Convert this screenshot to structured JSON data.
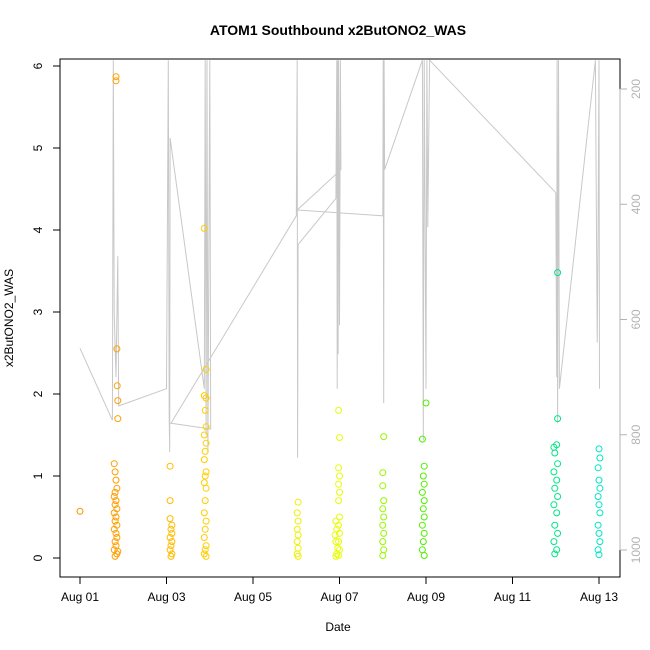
{
  "chart_data": {
    "type": "scatter",
    "title": "ATOM1 Southbound x2ButONO2_WAS",
    "xlabel": "Date",
    "ylabel": "x2ButONO2_WAS",
    "xlim": [
      "2016-08-01",
      "2016-08-13"
    ],
    "ylim": [
      0,
      6
    ],
    "y2lim": [
      1000,
      150
    ],
    "x_tick_labels": [
      "Aug 01",
      "Aug 03",
      "Aug 05",
      "Aug 07",
      "Aug 09",
      "Aug 11",
      "Aug 13"
    ],
    "y_ticks": [
      0,
      1,
      2,
      3,
      4,
      5,
      6
    ],
    "y2_ticks": [
      200,
      400,
      600,
      800,
      1000
    ],
    "grid": false,
    "colors": {
      "line": "#c8c8c8",
      "y2_axis": "#b3b3b3",
      "point_gradient": [
        "#ff8c00",
        "#ffd000",
        "#e6ff00",
        "#00e600",
        "#00e6c8"
      ]
    },
    "series": [
      {
        "values": [
          [
            "2016-08-01T00:00",
            0.57
          ],
          [
            "2016-08-01T20:00",
            5.82
          ],
          [
            "2016-08-01T20:00",
            5.87
          ],
          [
            "2016-08-01T20:30",
            2.55
          ],
          [
            "2016-08-01T20:40",
            2.1
          ],
          [
            "2016-08-01T21:00",
            1.92
          ],
          [
            "2016-08-01T21:00",
            1.7
          ],
          [
            "2016-08-01T19:00",
            1.15
          ],
          [
            "2016-08-01T19:30",
            1.05
          ],
          [
            "2016-08-01T20:00",
            0.95
          ],
          [
            "2016-08-01T20:30",
            0.85
          ],
          [
            "2016-08-01T19:30",
            0.8
          ],
          [
            "2016-08-01T19:00",
            0.75
          ],
          [
            "2016-08-01T20:00",
            0.7
          ],
          [
            "2016-08-01T19:30",
            0.65
          ],
          [
            "2016-08-01T20:30",
            0.6
          ],
          [
            "2016-08-01T19:00",
            0.55
          ],
          [
            "2016-08-01T20:00",
            0.5
          ],
          [
            "2016-08-01T19:30",
            0.45
          ],
          [
            "2016-08-01T20:30",
            0.4
          ],
          [
            "2016-08-01T19:00",
            0.35
          ],
          [
            "2016-08-01T20:00",
            0.3
          ],
          [
            "2016-08-01T20:30",
            0.25
          ],
          [
            "2016-08-01T19:30",
            0.2
          ],
          [
            "2016-08-01T20:00",
            0.15
          ],
          [
            "2016-08-01T19:00",
            0.1
          ],
          [
            "2016-08-01T20:30",
            0.05
          ],
          [
            "2016-08-01T19:30",
            0.02
          ],
          [
            "2016-08-01T21:00",
            0.08
          ],
          [
            "2016-08-03T02:00",
            1.12
          ],
          [
            "2016-08-03T02:00",
            0.7
          ],
          [
            "2016-08-03T02:00",
            0.48
          ],
          [
            "2016-08-03T03:00",
            0.4
          ],
          [
            "2016-08-03T02:30",
            0.35
          ],
          [
            "2016-08-03T03:00",
            0.3
          ],
          [
            "2016-08-03T02:00",
            0.25
          ],
          [
            "2016-08-03T03:00",
            0.2
          ],
          [
            "2016-08-03T02:30",
            0.15
          ],
          [
            "2016-08-03T02:00",
            0.1
          ],
          [
            "2016-08-03T03:00",
            0.05
          ],
          [
            "2016-08-03T02:30",
            0.02
          ],
          [
            "2016-08-03T21:00",
            4.02
          ],
          [
            "2016-08-03T22:00",
            2.3
          ],
          [
            "2016-08-03T21:00",
            1.98
          ],
          [
            "2016-08-03T22:00",
            1.95
          ],
          [
            "2016-08-03T21:30",
            1.8
          ],
          [
            "2016-08-03T22:00",
            1.6
          ],
          [
            "2016-08-03T21:00",
            1.5
          ],
          [
            "2016-08-03T22:00",
            1.4
          ],
          [
            "2016-08-03T21:30",
            1.3
          ],
          [
            "2016-08-03T21:00",
            1.2
          ],
          [
            "2016-08-03T22:00",
            1.05
          ],
          [
            "2016-08-03T21:30",
            1.0
          ],
          [
            "2016-08-03T21:00",
            0.92
          ],
          [
            "2016-08-03T22:00",
            0.85
          ],
          [
            "2016-08-03T21:30",
            0.7
          ],
          [
            "2016-08-03T21:00",
            0.55
          ],
          [
            "2016-08-03T22:00",
            0.45
          ],
          [
            "2016-08-03T21:30",
            0.35
          ],
          [
            "2016-08-03T21:00",
            0.25
          ],
          [
            "2016-08-03T22:00",
            0.15
          ],
          [
            "2016-08-03T21:30",
            0.1
          ],
          [
            "2016-08-03T21:00",
            0.05
          ],
          [
            "2016-08-03T22:00",
            0.02
          ],
          [
            "2016-08-06T01:00",
            0.68
          ],
          [
            "2016-08-06T00:30",
            0.55
          ],
          [
            "2016-08-06T01:00",
            0.45
          ],
          [
            "2016-08-06T00:30",
            0.35
          ],
          [
            "2016-08-06T01:00",
            0.28
          ],
          [
            "2016-08-06T00:30",
            0.2
          ],
          [
            "2016-08-06T01:00",
            0.12
          ],
          [
            "2016-08-06T00:30",
            0.05
          ],
          [
            "2016-08-06T01:00",
            0.02
          ],
          [
            "2016-08-06T22:00",
            0.45
          ],
          [
            "2016-08-06T22:30",
            0.35
          ],
          [
            "2016-08-06T21:30",
            0.28
          ],
          [
            "2016-08-06T22:00",
            0.2
          ],
          [
            "2016-08-06T23:00",
            0.12
          ],
          [
            "2016-08-06T22:30",
            0.05
          ],
          [
            "2016-08-06T22:00",
            0.02
          ],
          [
            "2016-08-06T23:30",
            1.8
          ],
          [
            "2016-08-07T00:00",
            1.47
          ],
          [
            "2016-08-06T23:30",
            1.1
          ],
          [
            "2016-08-07T00:00",
            1.0
          ],
          [
            "2016-08-06T23:30",
            0.9
          ],
          [
            "2016-08-07T00:00",
            0.8
          ],
          [
            "2016-08-06T23:30",
            0.7
          ],
          [
            "2016-08-07T00:00",
            0.5
          ],
          [
            "2016-08-06T23:30",
            0.4
          ],
          [
            "2016-08-07T00:00",
            0.3
          ],
          [
            "2016-08-06T23:30",
            0.2
          ],
          [
            "2016-08-07T00:00",
            0.1
          ],
          [
            "2016-08-06T23:30",
            0.03
          ],
          [
            "2016-08-08T00:30",
            1.48
          ],
          [
            "2016-08-08T00:00",
            1.04
          ],
          [
            "2016-08-08T00:00",
            0.88
          ],
          [
            "2016-08-08T00:30",
            0.7
          ],
          [
            "2016-08-08T00:00",
            0.6
          ],
          [
            "2016-08-08T00:30",
            0.5
          ],
          [
            "2016-08-08T00:00",
            0.4
          ],
          [
            "2016-08-08T00:30",
            0.3
          ],
          [
            "2016-08-08T00:00",
            0.2
          ],
          [
            "2016-08-08T00:30",
            0.1
          ],
          [
            "2016-08-08T00:00",
            0.03
          ],
          [
            "2016-08-08T22:00",
            1.45
          ],
          [
            "2016-08-09T00:00",
            1.89
          ],
          [
            "2016-08-08T23:00",
            1.12
          ],
          [
            "2016-08-08T22:30",
            1.0
          ],
          [
            "2016-08-08T23:00",
            0.9
          ],
          [
            "2016-08-08T22:00",
            0.8
          ],
          [
            "2016-08-08T23:00",
            0.7
          ],
          [
            "2016-08-08T22:30",
            0.6
          ],
          [
            "2016-08-08T23:00",
            0.5
          ],
          [
            "2016-08-08T22:00",
            0.4
          ],
          [
            "2016-08-08T23:00",
            0.3
          ],
          [
            "2016-08-08T22:30",
            0.2
          ],
          [
            "2016-08-08T22:00",
            0.1
          ],
          [
            "2016-08-08T23:00",
            0.03
          ],
          [
            "2016-08-12T01:00",
            3.48
          ],
          [
            "2016-08-12T01:00",
            1.7
          ],
          [
            "2016-08-11T23:00",
            1.35
          ],
          [
            "2016-08-12T00:30",
            1.38
          ],
          [
            "2016-08-11T23:30",
            1.28
          ],
          [
            "2016-08-12T01:00",
            1.15
          ],
          [
            "2016-08-11T23:00",
            1.05
          ],
          [
            "2016-08-12T00:30",
            0.95
          ],
          [
            "2016-08-11T23:30",
            0.85
          ],
          [
            "2016-08-12T01:00",
            0.75
          ],
          [
            "2016-08-11T23:00",
            0.65
          ],
          [
            "2016-08-12T00:30",
            0.55
          ],
          [
            "2016-08-11T23:30",
            0.4
          ],
          [
            "2016-08-12T01:00",
            0.3
          ],
          [
            "2016-08-11T23:00",
            0.2
          ],
          [
            "2016-08-12T00:30",
            0.1
          ],
          [
            "2016-08-11T23:30",
            0.05
          ],
          [
            "2016-08-13T00:00",
            1.33
          ],
          [
            "2016-08-13T00:30",
            1.22
          ],
          [
            "2016-08-12T23:30",
            1.1
          ],
          [
            "2016-08-13T00:00",
            0.95
          ],
          [
            "2016-08-13T00:30",
            0.85
          ],
          [
            "2016-08-12T23:30",
            0.75
          ],
          [
            "2016-08-13T00:00",
            0.65
          ],
          [
            "2016-08-13T00:30",
            0.55
          ],
          [
            "2016-08-12T23:30",
            0.4
          ],
          [
            "2016-08-13T00:00",
            0.3
          ],
          [
            "2016-08-13T00:30",
            0.2
          ],
          [
            "2016-08-12T23:30",
            0.1
          ],
          [
            "2016-08-13T00:00",
            0.04
          ]
        ]
      }
    ],
    "pressure_line": [
      [
        "2016-08-01T00:00",
        650
      ],
      [
        "2016-08-01T18:00",
        775
      ],
      [
        "2016-08-01T18:30",
        150
      ],
      [
        "2016-08-01T19:00",
        590
      ],
      [
        "2016-08-01T20:00",
        700
      ],
      [
        "2016-08-01T21:00",
        490
      ],
      [
        "2016-08-01T21:30",
        750
      ],
      [
        "2016-08-03T00:00",
        720
      ],
      [
        "2016-08-03T01:00",
        150
      ],
      [
        "2016-08-03T01:30",
        770
      ],
      [
        "2016-08-03T01:45",
        830
      ],
      [
        "2016-08-03T02:00",
        285
      ],
      [
        "2016-08-03T21:00",
        720
      ],
      [
        "2016-08-03T21:30",
        150
      ],
      [
        "2016-08-03T22:00",
        800
      ],
      [
        "2016-08-03T22:30",
        150
      ],
      [
        "2016-08-03T23:00",
        830
      ],
      [
        "2016-08-04T00:00",
        150
      ],
      [
        "2016-08-04T00:30",
        790
      ],
      [
        "2016-08-03T02:30",
        780
      ],
      [
        "2016-08-06T00:00",
        420
      ],
      [
        "2016-08-06T00:30",
        150
      ],
      [
        "2016-08-06T00:45",
        840
      ],
      [
        "2016-08-06T01:00",
        470
      ],
      [
        "2016-08-06T22:00",
        390
      ],
      [
        "2016-08-06T22:30",
        150
      ],
      [
        "2016-08-06T22:45",
        720
      ],
      [
        "2016-08-06T23:00",
        150
      ],
      [
        "2016-08-06T23:15",
        660
      ],
      [
        "2016-08-06T23:30",
        150
      ],
      [
        "2016-08-07T00:00",
        610
      ],
      [
        "2016-08-07T00:30",
        150
      ],
      [
        "2016-08-07T00:45",
        340
      ],
      [
        "2016-08-06T00:30",
        410
      ],
      [
        "2016-08-08T00:00",
        420
      ],
      [
        "2016-08-08T00:15",
        150
      ],
      [
        "2016-08-08T00:30",
        745
      ],
      [
        "2016-08-08T00:45",
        150
      ],
      [
        "2016-08-08T01:00",
        340
      ],
      [
        "2016-08-08T22:00",
        150
      ],
      [
        "2016-08-08T22:30",
        810
      ],
      [
        "2016-08-08T23:00",
        150
      ],
      [
        "2016-08-09T00:00",
        720
      ],
      [
        "2016-08-09T00:30",
        150
      ],
      [
        "2016-08-09T01:00",
        440
      ],
      [
        "2016-08-09T02:00",
        150
      ],
      [
        "2016-08-12T00:00",
        380
      ],
      [
        "2016-08-12T00:30",
        700
      ],
      [
        "2016-08-12T00:45",
        150
      ],
      [
        "2016-08-12T01:00",
        780
      ],
      [
        "2016-08-12T01:30",
        150
      ],
      [
        "2016-08-12T02:00",
        720
      ],
      [
        "2016-08-12T22:00",
        150
      ],
      [
        "2016-08-12T23:00",
        640
      ],
      [
        "2016-08-12T23:30",
        440
      ],
      [
        "2016-08-13T00:00",
        150
      ],
      [
        "2016-08-13T00:15",
        720
      ]
    ]
  }
}
